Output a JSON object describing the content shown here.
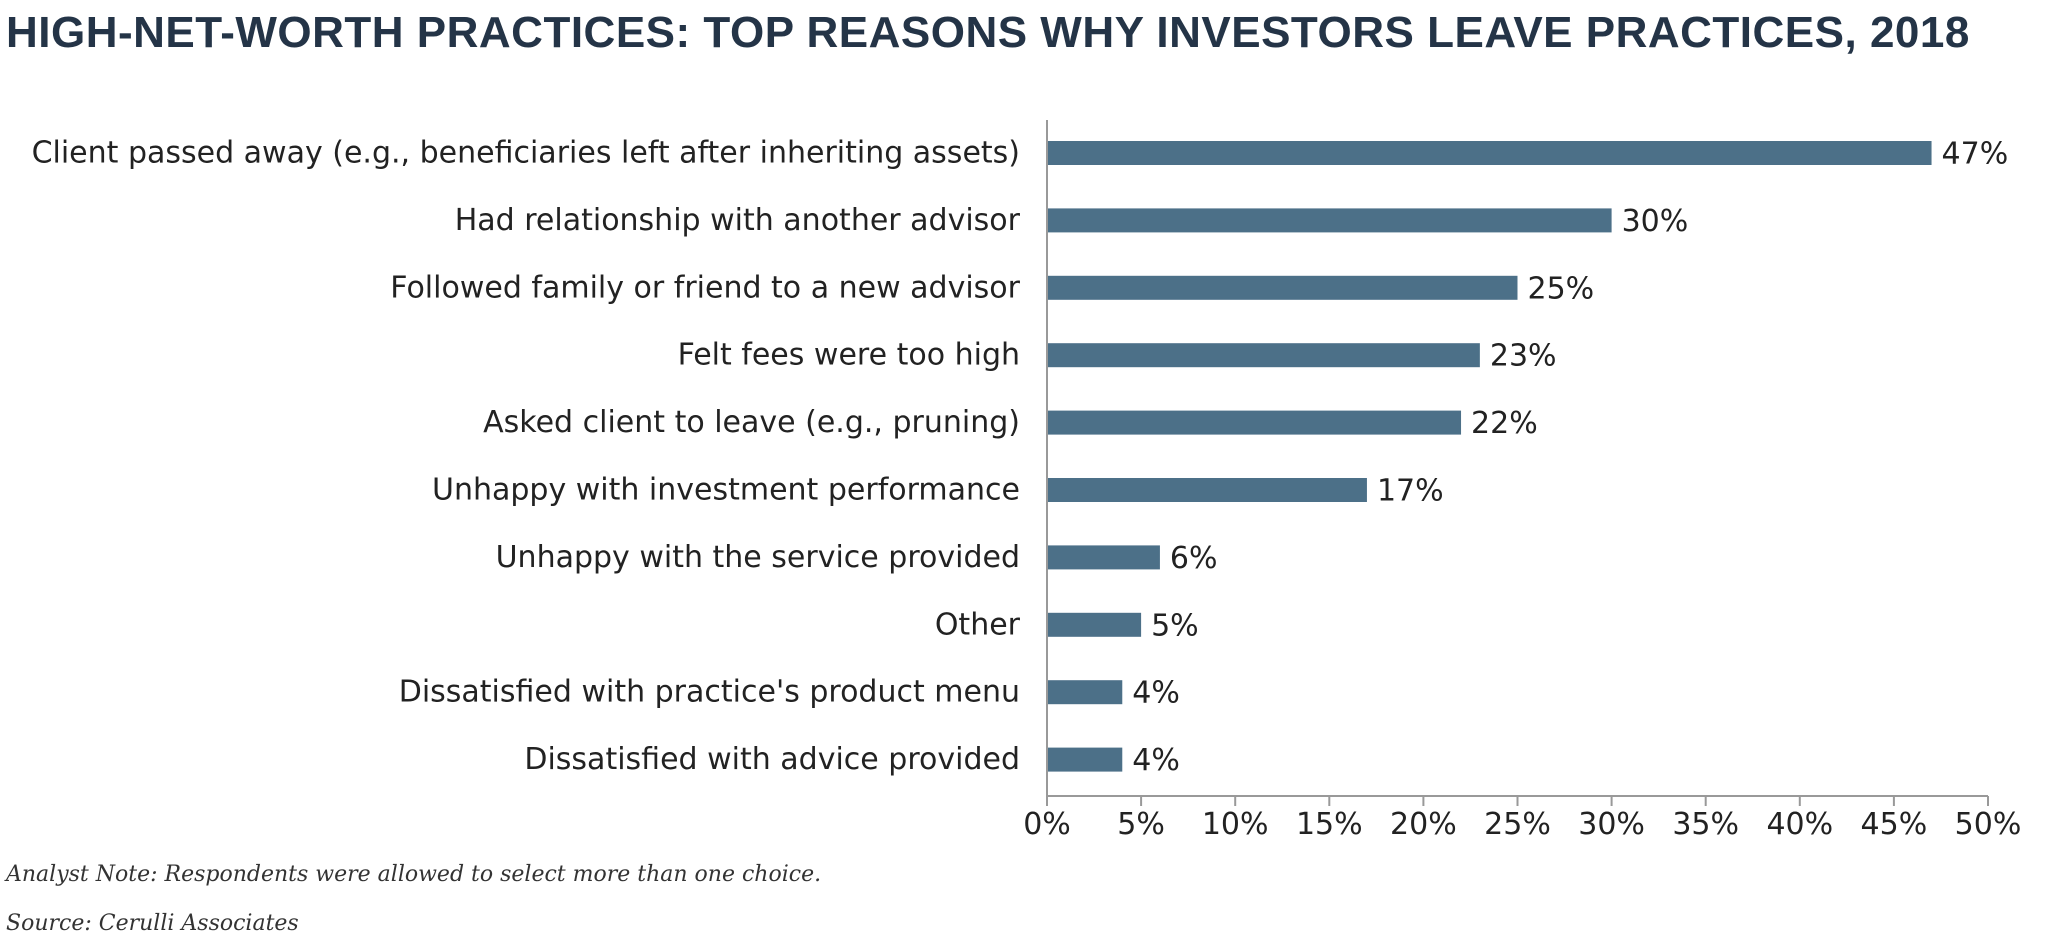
{
  "colors": {
    "bar": "#4c7088",
    "axis": "#999999",
    "title": "#243447"
  },
  "notes": {
    "analyst": "Analyst Note: Respondents were allowed to select more than one choice.",
    "source": "Source: Cerulli Associates"
  },
  "chart_data": {
    "type": "bar",
    "orientation": "horizontal",
    "title": "HIGH-NET-WORTH PRACTICES: TOP REASONS WHY INVESTORS LEAVE PRACTICES, 2018",
    "categories": [
      "Client passed away (e.g., beneficiaries left after inheriting assets)",
      "Had relationship with another advisor",
      "Followed family or friend to a new advisor",
      "Felt fees were too high",
      "Asked client to leave (e.g., pruning)",
      "Unhappy with investment performance",
      "Unhappy with the service provided",
      "Other",
      "Dissatisfied with practice's product menu",
      "Dissatisfied with advice provided"
    ],
    "values": [
      47,
      30,
      25,
      23,
      22,
      17,
      6,
      5,
      4,
      4
    ],
    "value_labels": [
      "47%",
      "30%",
      "25%",
      "23%",
      "22%",
      "17%",
      "6%",
      "5%",
      "4%",
      "4%"
    ],
    "xlim": [
      0,
      50
    ],
    "xticks": [
      0,
      5,
      10,
      15,
      20,
      25,
      30,
      35,
      40,
      45,
      50
    ],
    "xtick_labels": [
      "0%",
      "5%",
      "10%",
      "15%",
      "20%",
      "25%",
      "30%",
      "35%",
      "40%",
      "45%",
      "50%"
    ],
    "grid": false,
    "legend": "none"
  }
}
